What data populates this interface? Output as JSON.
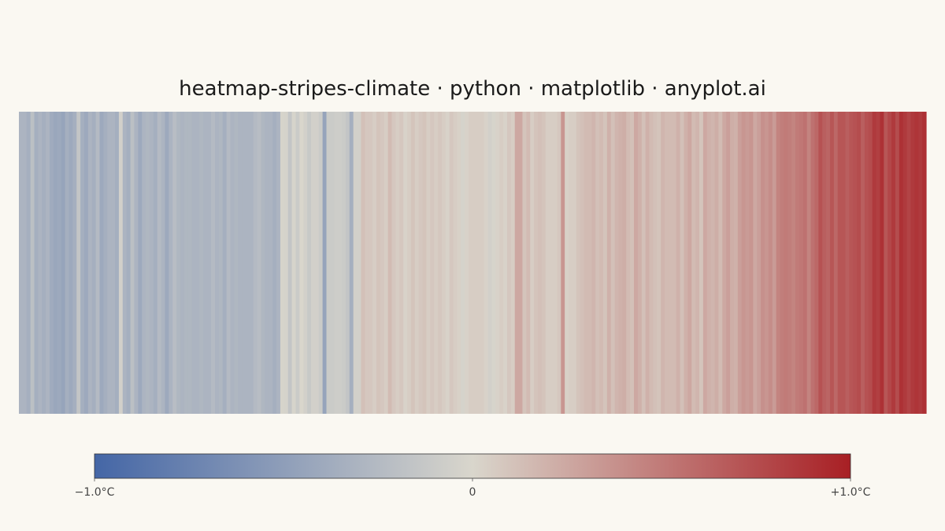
{
  "chart_data": {
    "type": "heatmap",
    "title": "heatmap-stripes-climate · python · matplotlib · anyplot.ai",
    "xlabel": "",
    "ylabel": "",
    "grid": false,
    "colorbar": {
      "range": [
        -1.0,
        1.0
      ],
      "colors": [
        "#4466a6",
        "#d9d6cc",
        "#a81f24"
      ],
      "ticks": [
        {
          "value": -1.0,
          "label": "−1.0°C"
        },
        {
          "value": 0,
          "label": "0"
        },
        {
          "value": 1.0,
          "label": "+1.0°C"
        }
      ]
    },
    "values": [
      -0.3,
      -0.3,
      -0.35,
      -0.2,
      -0.35,
      -0.3,
      -0.35,
      -0.3,
      -0.38,
      -0.42,
      -0.4,
      -0.45,
      -0.35,
      -0.4,
      -0.35,
      -0.15,
      -0.35,
      -0.4,
      -0.3,
      -0.35,
      -0.25,
      -0.4,
      -0.35,
      -0.3,
      -0.3,
      -0.35,
      -0.05,
      -0.3,
      -0.35,
      -0.2,
      -0.3,
      -0.4,
      -0.3,
      -0.28,
      -0.3,
      -0.35,
      -0.25,
      -0.3,
      -0.4,
      -0.3,
      -0.22,
      -0.28,
      -0.3,
      -0.28,
      -0.28,
      -0.3,
      -0.3,
      -0.28,
      -0.3,
      -0.3,
      -0.25,
      -0.3,
      -0.28,
      -0.35,
      -0.25,
      -0.3,
      -0.28,
      -0.3,
      -0.3,
      -0.3,
      -0.3,
      -0.25,
      -0.22,
      -0.28,
      -0.3,
      -0.3,
      -0.35,
      -0.3,
      -0.02,
      -0.03,
      -0.15,
      -0.02,
      -0.1,
      0.0,
      -0.05,
      -0.12,
      -0.05,
      -0.05,
      -0.1,
      -0.45,
      -0.1,
      -0.1,
      -0.08,
      -0.08,
      -0.1,
      -0.15,
      -0.35,
      -0.05,
      -0.05,
      0.12,
      0.08,
      0.08,
      0.05,
      0.1,
      0.08,
      0.05,
      0.15,
      0.08,
      0.05,
      0.08,
      0.02,
      0.05,
      0.1,
      0.05,
      0.08,
      0.1,
      0.05,
      0.08,
      0.05,
      0.08,
      0.05,
      0.02,
      0.08,
      0.05,
      0.03,
      -0.03,
      0.02,
      0.05,
      0.05,
      0.05,
      0.05,
      0.02,
      -0.05,
      -0.02,
      0.02,
      0.05,
      0.02,
      0.08,
      0.05,
      0.25,
      0.25,
      0.1,
      0.15,
      0.05,
      0.1,
      0.12,
      0.1,
      0.05,
      0.05,
      0.05,
      0.08,
      0.35,
      0.03,
      0.05,
      0.05,
      0.1,
      0.12,
      0.15,
      0.15,
      0.18,
      0.12,
      0.15,
      0.1,
      0.2,
      0.12,
      0.18,
      0.2,
      0.22,
      0.15,
      0.12,
      0.25,
      0.2,
      0.12,
      0.2,
      0.15,
      0.12,
      0.1,
      0.18,
      0.15,
      0.15,
      0.15,
      0.2,
      0.12,
      0.2,
      0.25,
      0.15,
      0.18,
      0.1,
      0.25,
      0.2,
      0.18,
      0.22,
      0.15,
      0.25,
      0.3,
      0.22,
      0.2,
      0.3,
      0.35,
      0.32,
      0.35,
      0.25,
      0.3,
      0.38,
      0.35,
      0.4,
      0.32,
      0.45,
      0.48,
      0.5,
      0.48,
      0.45,
      0.5,
      0.52,
      0.55,
      0.45,
      0.55,
      0.6,
      0.72,
      0.65,
      0.62,
      0.7,
      0.6,
      0.7,
      0.7,
      0.65,
      0.7,
      0.72,
      0.75,
      0.65,
      0.72,
      0.75,
      0.85,
      0.82,
      0.9,
      0.7,
      0.78,
      0.85,
      0.75,
      0.9,
      0.85,
      0.8,
      0.85,
      0.88,
      0.85,
      0.9
    ]
  }
}
